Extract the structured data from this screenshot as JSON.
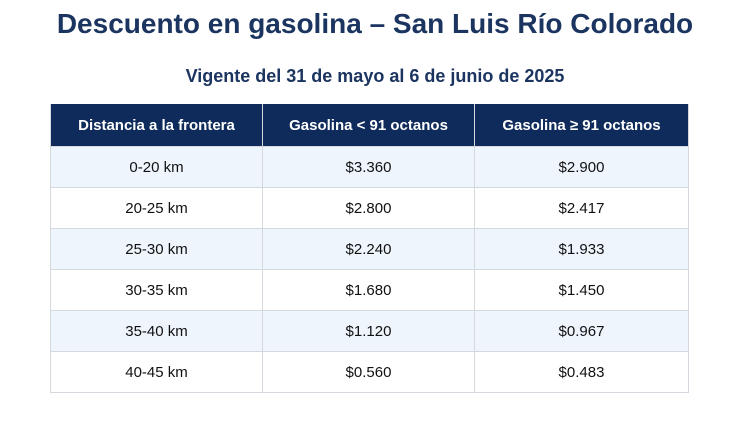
{
  "title": "Descuento en gasolina – San Luis Río Colorado",
  "subtitle": "Vigente del 31 de mayo al 6 de junio de 2025",
  "table": {
    "headers": [
      "Distancia a la frontera",
      "Gasolina < 91 octanos",
      "Gasolina ≥ 91 octanos"
    ],
    "rows": [
      [
        "0-20 km",
        "$3.360",
        "$2.900"
      ],
      [
        "20-25 km",
        "$2.800",
        "$2.417"
      ],
      [
        "25-30 km",
        "$2.240",
        "$1.933"
      ],
      [
        "30-35 km",
        "$1.680",
        "$1.450"
      ],
      [
        "35-40 km",
        "$1.120",
        "$0.967"
      ],
      [
        "40-45 km",
        "$0.560",
        "$0.483"
      ]
    ]
  },
  "colors": {
    "heading_text": "#1b3560",
    "header_background": "#0f2b5b",
    "header_text": "#ffffff",
    "row_alternate_background": "#eef5fd",
    "row_background": "#ffffff",
    "grid_line": "#d4d9e0"
  }
}
